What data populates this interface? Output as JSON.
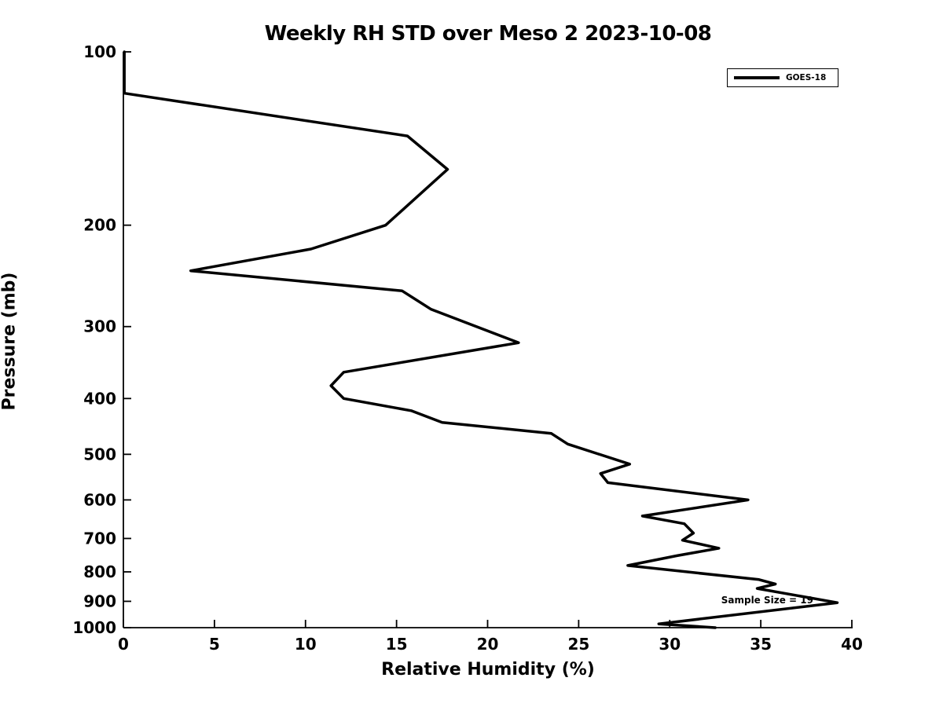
{
  "figure": {
    "background": "#ffffff"
  },
  "chart_data": {
    "type": "line",
    "title": "Weekly RH STD over Meso 2 2023-10-08",
    "xlabel": "Relative Humidity (%)",
    "ylabel": "Pressure (mb)",
    "xlim": [
      0,
      40
    ],
    "xticks": [
      0,
      5,
      10,
      15,
      20,
      25,
      30,
      35,
      40
    ],
    "ylim": [
      100,
      1000
    ],
    "yticks": [
      100,
      200,
      300,
      400,
      500,
      600,
      700,
      800,
      900,
      1000
    ],
    "yscale": "log",
    "y_inverted": true,
    "grid": false,
    "tick_direction": "in",
    "legend": {
      "position": "top-right",
      "entries": [
        {
          "label": "GOES-18",
          "color": "#000000",
          "linewidth": 4
        }
      ]
    },
    "annotation": {
      "text": "Sample Size = 19",
      "align": "right",
      "rh": 37.9,
      "pressure": 898
    },
    "series": [
      {
        "name": "GOES-18",
        "color": "#000000",
        "linewidth": 3.5,
        "points_pressure_rh": [
          [
            100,
            0.05
          ],
          [
            118,
            0.05
          ],
          [
            140,
            15.6
          ],
          [
            160,
            17.8
          ],
          [
            200,
            14.4
          ],
          [
            220,
            10.3
          ],
          [
            240,
            3.7
          ],
          [
            260,
            15.3
          ],
          [
            280,
            16.9
          ],
          [
            320,
            21.7
          ],
          [
            360,
            12.1
          ],
          [
            380,
            11.4
          ],
          [
            400,
            12.1
          ],
          [
            420,
            15.8
          ],
          [
            440,
            17.5
          ],
          [
            460,
            23.5
          ],
          [
            480,
            24.4
          ],
          [
            520,
            27.8
          ],
          [
            540,
            26.2
          ],
          [
            560,
            26.6
          ],
          [
            600,
            34.3
          ],
          [
            640,
            28.5
          ],
          [
            660,
            30.8
          ],
          [
            685,
            31.3
          ],
          [
            705,
            30.7
          ],
          [
            728,
            32.7
          ],
          [
            750,
            30.4
          ],
          [
            780,
            27.7
          ],
          [
            825,
            34.9
          ],
          [
            840,
            35.8
          ],
          [
            855,
            34.8
          ],
          [
            905,
            39.2
          ],
          [
            985,
            29.4
          ],
          [
            1000,
            32.5
          ]
        ]
      }
    ]
  },
  "colors": {
    "line": "#000000",
    "axis": "#000000",
    "text": "#000000",
    "background": "#ffffff"
  }
}
